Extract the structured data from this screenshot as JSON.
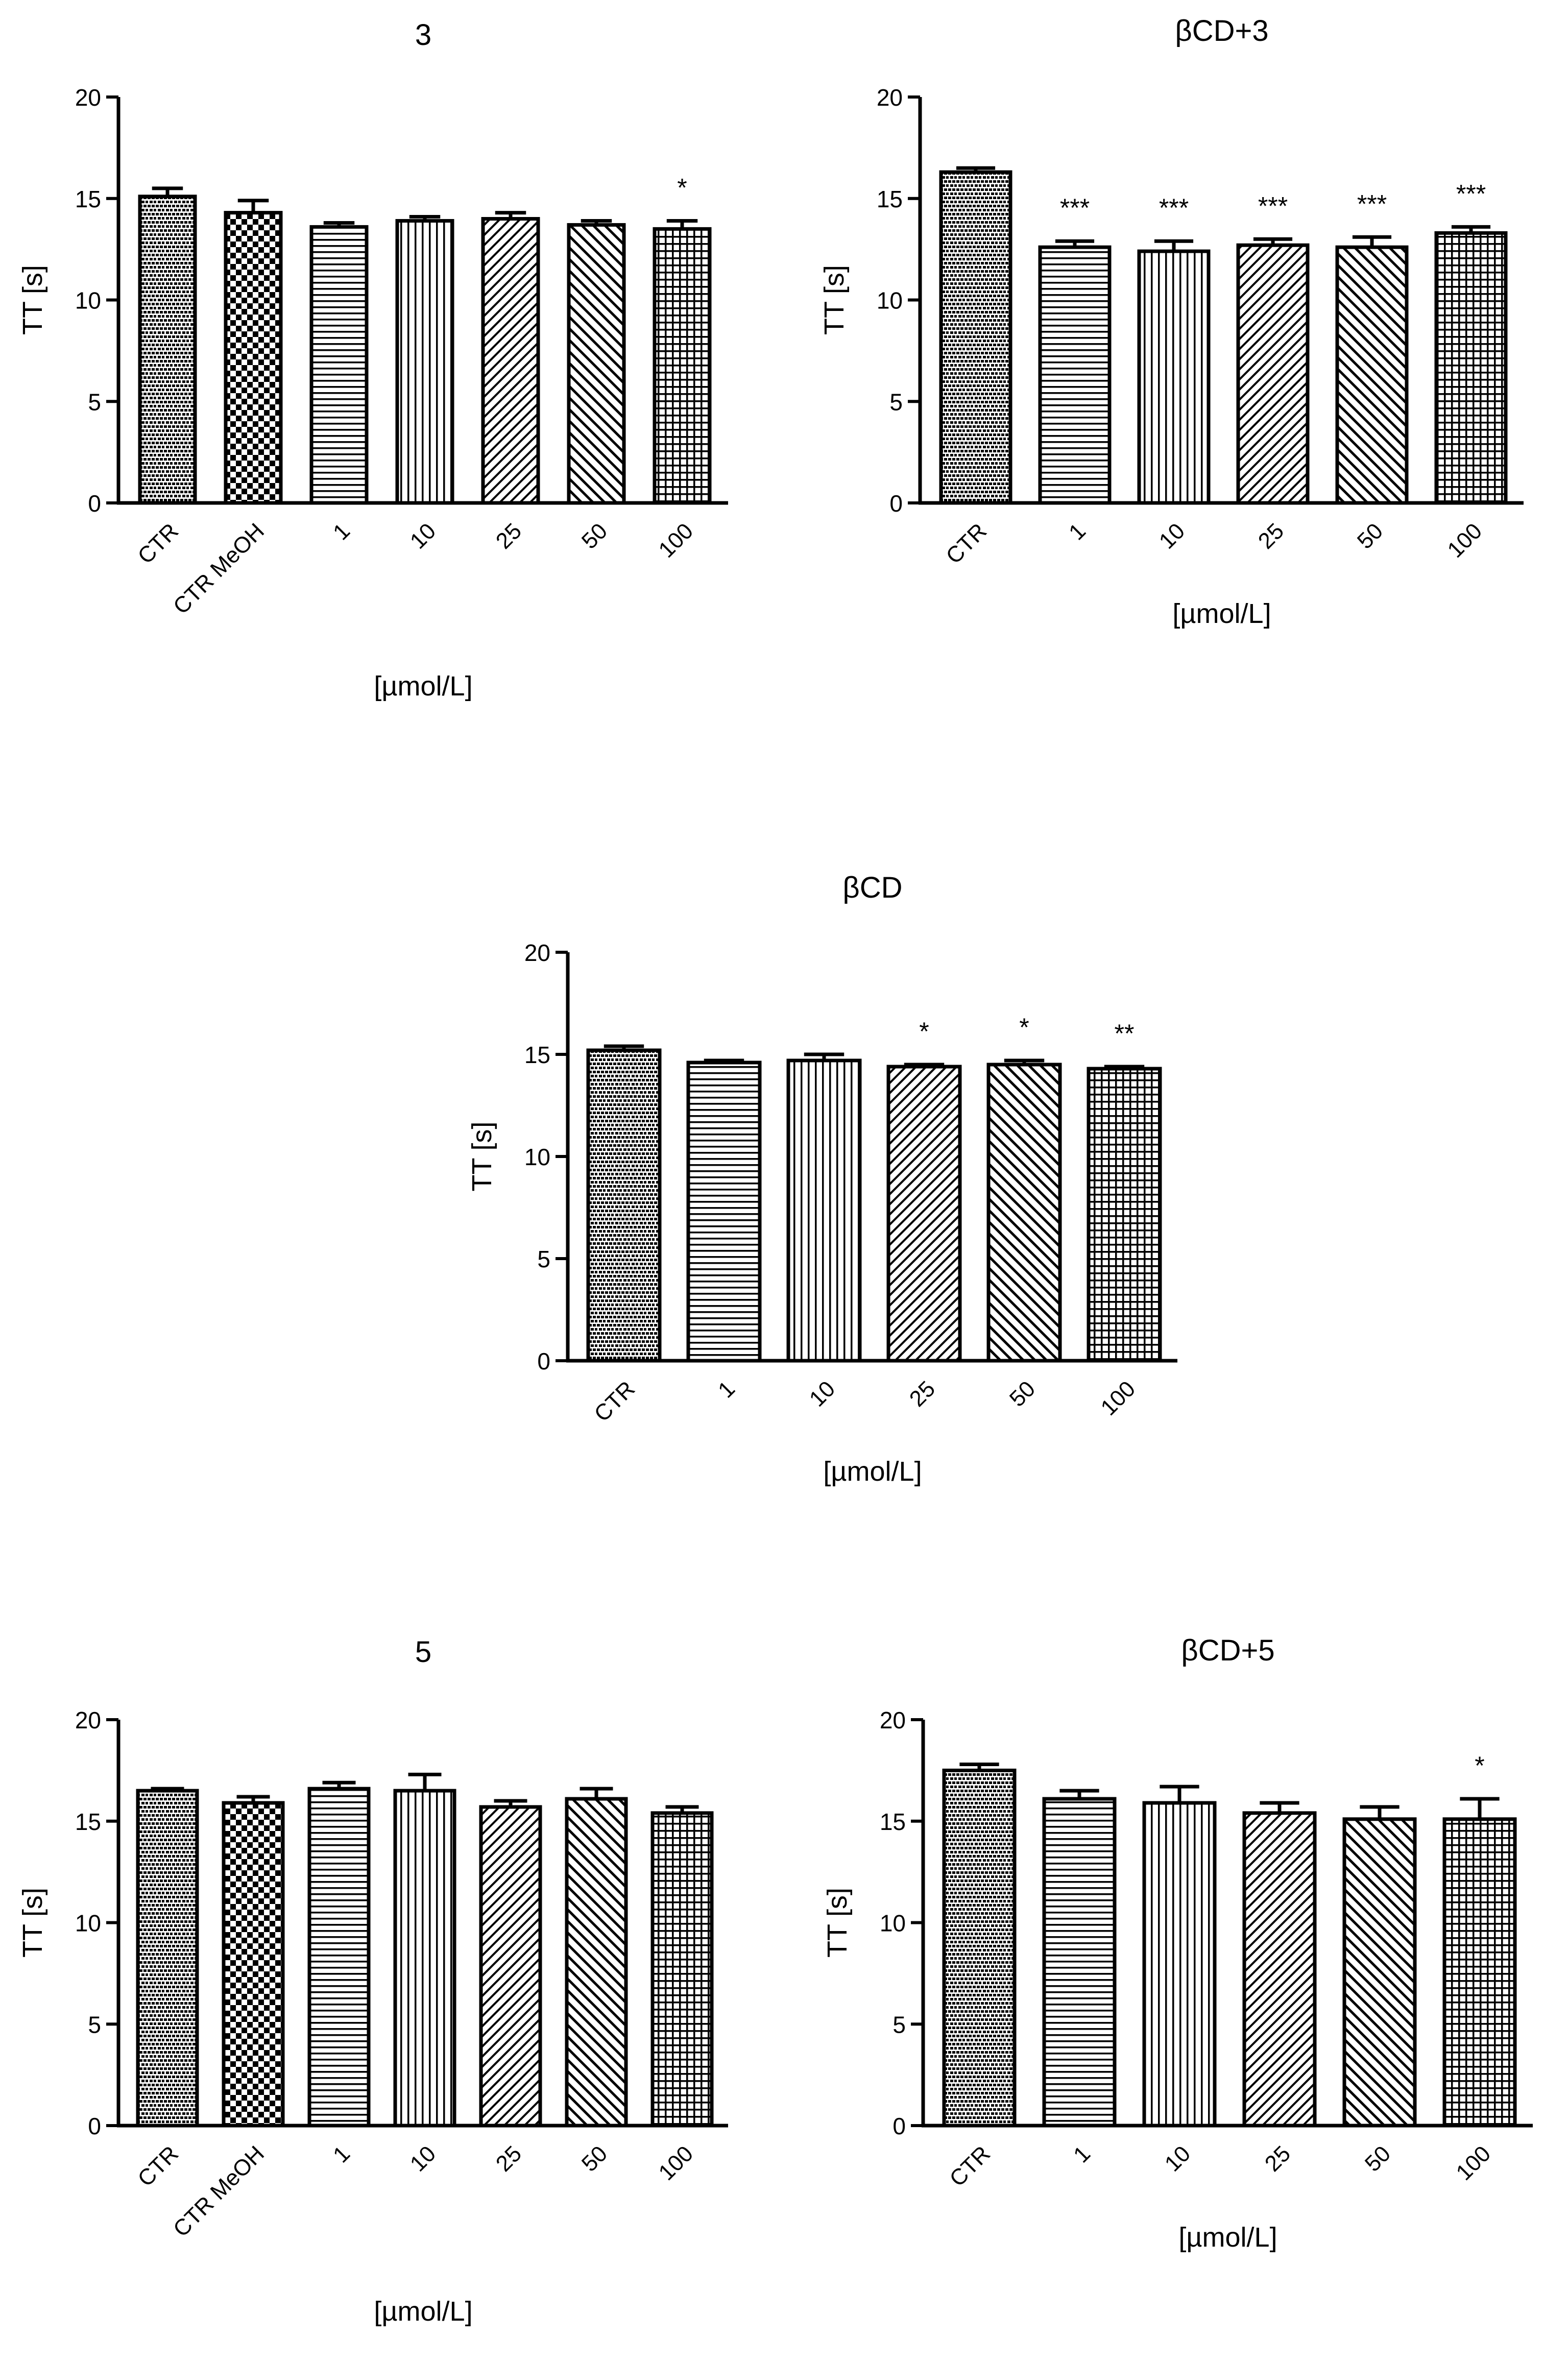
{
  "colors": {
    "ink": "#000000",
    "significance": "#555555",
    "background": "#ffffff"
  },
  "chart_data": [
    {
      "type": "bar",
      "title": "3",
      "ylabel": "TT [s]",
      "xlabel": "[µmol/L]",
      "ylim": [
        0,
        20
      ],
      "yticks": [
        "0",
        "5",
        "10",
        "15",
        "20"
      ],
      "categories": [
        "CTR",
        "CTR MeOH",
        "1",
        "10",
        "25",
        "50",
        "100"
      ],
      "values": [
        15.1,
        14.3,
        13.6,
        13.9,
        14.0,
        13.7,
        13.5
      ],
      "errors": [
        0.4,
        0.6,
        0.2,
        0.2,
        0.3,
        0.2,
        0.4
      ],
      "patterns": [
        "dots",
        "checker",
        "hlines",
        "vlines",
        "diag-fwd",
        "diag-back",
        "grid"
      ],
      "significance": [
        "",
        "",
        "",
        "",
        "",
        "",
        "*"
      ]
    },
    {
      "type": "bar",
      "title": "βCD+3",
      "ylabel": "TT [s]",
      "xlabel": "[µmol/L]",
      "ylim": [
        0,
        20
      ],
      "yticks": [
        "0",
        "5",
        "10",
        "15",
        "20"
      ],
      "categories": [
        "CTR",
        "1",
        "10",
        "25",
        "50",
        "100"
      ],
      "values": [
        16.3,
        12.6,
        12.4,
        12.7,
        12.6,
        13.3
      ],
      "errors": [
        0.2,
        0.3,
        0.5,
        0.3,
        0.5,
        0.3
      ],
      "patterns": [
        "dots",
        "hlines",
        "vlines",
        "diag-fwd",
        "diag-back",
        "grid"
      ],
      "significance": [
        "",
        "***",
        "***",
        "***",
        "***",
        "***"
      ]
    },
    {
      "type": "bar",
      "title": "βCD",
      "ylabel": "TT [s]",
      "xlabel": "[µmol/L]",
      "ylim": [
        0,
        20
      ],
      "yticks": [
        "0",
        "5",
        "10",
        "15",
        "20"
      ],
      "categories": [
        "CTR",
        "1",
        "10",
        "25",
        "50",
        "100"
      ],
      "values": [
        15.2,
        14.6,
        14.7,
        14.4,
        14.5,
        14.3
      ],
      "errors": [
        0.2,
        0.1,
        0.3,
        0.1,
        0.2,
        0.1
      ],
      "patterns": [
        "dots",
        "hlines",
        "vlines",
        "diag-fwd",
        "diag-back",
        "grid"
      ],
      "significance": [
        "",
        "",
        "",
        "*",
        "*",
        "**"
      ]
    },
    {
      "type": "bar",
      "title": "5",
      "ylabel": "TT [s]",
      "xlabel": "[µmol/L]",
      "ylim": [
        0,
        20
      ],
      "yticks": [
        "0",
        "5",
        "10",
        "15",
        "20"
      ],
      "categories": [
        "CTR",
        "CTR MeOH",
        "1",
        "10",
        "25",
        "50",
        "100"
      ],
      "values": [
        16.5,
        15.9,
        16.6,
        16.5,
        15.7,
        16.1,
        15.4
      ],
      "errors": [
        0.1,
        0.3,
        0.3,
        0.8,
        0.3,
        0.5,
        0.3
      ],
      "patterns": [
        "dots",
        "checker",
        "hlines",
        "vlines",
        "diag-fwd",
        "diag-back",
        "grid"
      ],
      "significance": [
        "",
        "",
        "",
        "",
        "",
        "",
        ""
      ]
    },
    {
      "type": "bar",
      "title": "βCD+5",
      "ylabel": "TT [s]",
      "xlabel": "[µmol/L]",
      "ylim": [
        0,
        20
      ],
      "yticks": [
        "0",
        "5",
        "10",
        "15",
        "20"
      ],
      "categories": [
        "CTR",
        "1",
        "10",
        "25",
        "50",
        "100"
      ],
      "values": [
        17.5,
        16.1,
        15.9,
        15.4,
        15.1,
        15.1
      ],
      "errors": [
        0.3,
        0.4,
        0.8,
        0.5,
        0.6,
        1.0
      ],
      "patterns": [
        "dots",
        "hlines",
        "vlines",
        "diag-fwd",
        "diag-back",
        "grid"
      ],
      "significance": [
        "",
        "",
        "",
        "",
        "",
        "*"
      ]
    }
  ]
}
